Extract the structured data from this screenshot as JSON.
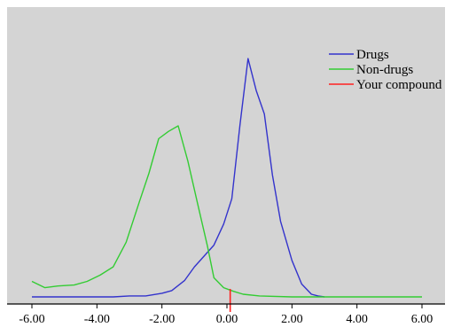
{
  "chart_data": {
    "type": "line",
    "title": "",
    "xlabel": "",
    "ylabel": "",
    "xlim": [
      -6,
      6
    ],
    "xticks": [
      "-6.00",
      "-4.00",
      "-2.00",
      "0.00",
      "2.00",
      "4.00",
      "6.00"
    ],
    "grid": false,
    "legend_position": "top-right",
    "colors": {
      "background": "#d4d4d4",
      "axis": "#000000",
      "drugs": "#3333cc",
      "non_drugs": "#33cc33",
      "compound": "#ff2020"
    },
    "series": [
      {
        "name": "Drugs",
        "color": "#3333cc",
        "points": [
          [
            -6.0,
            0.0
          ],
          [
            -5.0,
            0.0
          ],
          [
            -4.5,
            0.0
          ],
          [
            -4.0,
            0.0
          ],
          [
            -3.5,
            0.0
          ],
          [
            -3.0,
            0.004
          ],
          [
            -2.5,
            0.004
          ],
          [
            -2.0,
            0.015
          ],
          [
            -1.7,
            0.026
          ],
          [
            -1.3,
            0.068
          ],
          [
            -1.0,
            0.124
          ],
          [
            -0.7,
            0.169
          ],
          [
            -0.4,
            0.214
          ],
          [
            -0.1,
            0.301
          ],
          [
            0.15,
            0.406
          ],
          [
            0.4,
            0.711
          ],
          [
            0.65,
            0.985
          ],
          [
            0.9,
            0.853
          ],
          [
            1.15,
            0.756
          ],
          [
            1.4,
            0.504
          ],
          [
            1.65,
            0.312
          ],
          [
            2.0,
            0.151
          ],
          [
            2.3,
            0.053
          ],
          [
            2.6,
            0.011
          ],
          [
            2.8,
            0.004
          ],
          [
            3.0,
            0.0
          ]
        ]
      },
      {
        "name": "Non-drugs",
        "color": "#33cc33",
        "points": [
          [
            -6.0,
            0.064
          ],
          [
            -5.6,
            0.038
          ],
          [
            -5.2,
            0.045
          ],
          [
            -4.7,
            0.049
          ],
          [
            -4.3,
            0.064
          ],
          [
            -3.9,
            0.09
          ],
          [
            -3.5,
            0.124
          ],
          [
            -3.1,
            0.226
          ],
          [
            -2.7,
            0.391
          ],
          [
            -2.4,
            0.511
          ],
          [
            -2.1,
            0.654
          ],
          [
            -1.8,
            0.684
          ],
          [
            -1.5,
            0.707
          ],
          [
            -1.2,
            0.56
          ],
          [
            -0.9,
            0.384
          ],
          [
            -0.6,
            0.21
          ],
          [
            -0.4,
            0.079
          ],
          [
            -0.1,
            0.038
          ],
          [
            0.2,
            0.023
          ],
          [
            0.5,
            0.011
          ],
          [
            1.0,
            0.004
          ],
          [
            2.0,
            0.0
          ],
          [
            4.0,
            0.0
          ],
          [
            6.0,
            0.0
          ]
        ]
      },
      {
        "name": "Your compound",
        "color": "#ff2020",
        "marker_x": 0.1
      }
    ]
  }
}
